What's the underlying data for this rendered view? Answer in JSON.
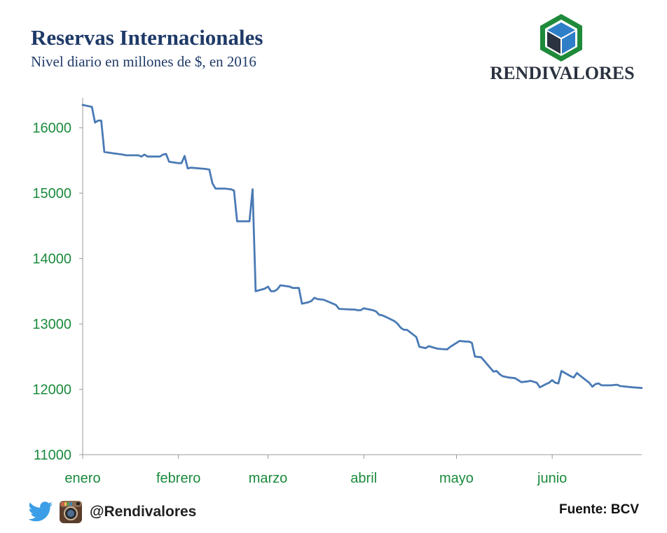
{
  "header": {
    "title": "Reservas Internacionales",
    "subtitle": "Nivel diario en millones de $, en 2016"
  },
  "brand": {
    "name": "RENDIVALORES"
  },
  "footer": {
    "handle": "@Rendivalores",
    "source": "Fuente: BCV",
    "icons": [
      "twitter-icon",
      "instagram-icon"
    ]
  },
  "colors": {
    "line": "#4a7ab5",
    "tick_label": "#1a8a3c",
    "title": "#1f3a68",
    "axis": "#999999",
    "logo_green": "#1e8a3a",
    "logo_blue": "#2f7fc8",
    "logo_dark": "#2b3240"
  },
  "chart_data": {
    "type": "line",
    "title": "Reservas Internacionales",
    "subtitle": "Nivel diario en millones de $, en 2016",
    "xlabel": "",
    "ylabel": "",
    "ylim": [
      11000,
      16000
    ],
    "xlim": [
      "2016-01-01",
      "2016-06-30"
    ],
    "yticks": [
      11000,
      12000,
      13000,
      14000,
      15000,
      16000
    ],
    "xticks": [
      {
        "date": "2016-01-01",
        "label": "enero"
      },
      {
        "date": "2016-02-01",
        "label": "febrero"
      },
      {
        "date": "2016-03-01",
        "label": "marzo"
      },
      {
        "date": "2016-04-01",
        "label": "abril"
      },
      {
        "date": "2016-05-01",
        "label": "mayo"
      },
      {
        "date": "2016-06-01",
        "label": "junio"
      }
    ],
    "grid": false,
    "legend": "none",
    "series": [
      {
        "points": [
          [
            "2016-01-01",
            16350
          ],
          [
            "2016-01-04",
            16320
          ],
          [
            "2016-01-05",
            16080
          ],
          [
            "2016-01-06",
            16110
          ],
          [
            "2016-01-07",
            16110
          ],
          [
            "2016-01-08",
            15630
          ],
          [
            "2016-01-11",
            15610
          ],
          [
            "2016-01-14",
            15590
          ],
          [
            "2016-01-15",
            15580
          ],
          [
            "2016-01-19",
            15580
          ],
          [
            "2016-01-20",
            15560
          ],
          [
            "2016-01-21",
            15590
          ],
          [
            "2016-01-22",
            15560
          ],
          [
            "2016-01-26",
            15560
          ],
          [
            "2016-01-27",
            15590
          ],
          [
            "2016-01-28",
            15600
          ],
          [
            "2016-01-29",
            15480
          ],
          [
            "2016-02-01",
            15460
          ],
          [
            "2016-02-02",
            15460
          ],
          [
            "2016-02-03",
            15570
          ],
          [
            "2016-02-04",
            15380
          ],
          [
            "2016-02-05",
            15390
          ],
          [
            "2016-02-10",
            15370
          ],
          [
            "2016-02-11",
            15360
          ],
          [
            "2016-02-12",
            15150
          ],
          [
            "2016-02-13",
            15070
          ],
          [
            "2016-02-16",
            15070
          ],
          [
            "2016-02-18",
            15060
          ],
          [
            "2016-02-19",
            15040
          ],
          [
            "2016-02-20",
            14570
          ],
          [
            "2016-02-22",
            14570
          ],
          [
            "2016-02-24",
            14570
          ],
          [
            "2016-02-25",
            15060
          ],
          [
            "2016-02-26",
            13500
          ],
          [
            "2016-02-29",
            13540
          ],
          [
            "2016-03-01",
            13570
          ],
          [
            "2016-03-02",
            13500
          ],
          [
            "2016-03-03",
            13500
          ],
          [
            "2016-03-04",
            13530
          ],
          [
            "2016-03-05",
            13590
          ],
          [
            "2016-03-08",
            13570
          ],
          [
            "2016-03-09",
            13550
          ],
          [
            "2016-03-11",
            13550
          ],
          [
            "2016-03-12",
            13310
          ],
          [
            "2016-03-14",
            13330
          ],
          [
            "2016-03-15",
            13350
          ],
          [
            "2016-03-16",
            13400
          ],
          [
            "2016-03-17",
            13380
          ],
          [
            "2016-03-19",
            13370
          ],
          [
            "2016-03-22",
            13310
          ],
          [
            "2016-03-23",
            13290
          ],
          [
            "2016-03-24",
            13230
          ],
          [
            "2016-03-28",
            13220
          ],
          [
            "2016-03-29",
            13220
          ],
          [
            "2016-03-30",
            13210
          ],
          [
            "2016-03-31",
            13210
          ],
          [
            "2016-04-01",
            13240
          ],
          [
            "2016-04-04",
            13210
          ],
          [
            "2016-04-05",
            13190
          ],
          [
            "2016-04-06",
            13140
          ],
          [
            "2016-04-07",
            13130
          ],
          [
            "2016-04-08",
            13110
          ],
          [
            "2016-04-11",
            13040
          ],
          [
            "2016-04-12",
            13000
          ],
          [
            "2016-04-13",
            12940
          ],
          [
            "2016-04-14",
            12910
          ],
          [
            "2016-04-15",
            12910
          ],
          [
            "2016-04-18",
            12800
          ],
          [
            "2016-04-19",
            12650
          ],
          [
            "2016-04-20",
            12640
          ],
          [
            "2016-04-21",
            12630
          ],
          [
            "2016-04-22",
            12660
          ],
          [
            "2016-04-25",
            12620
          ],
          [
            "2016-04-28",
            12610
          ],
          [
            "2016-04-29",
            12650
          ],
          [
            "2016-05-02",
            12740
          ],
          [
            "2016-05-04",
            12730
          ],
          [
            "2016-05-05",
            12730
          ],
          [
            "2016-05-06",
            12710
          ],
          [
            "2016-05-07",
            12500
          ],
          [
            "2016-05-09",
            12490
          ],
          [
            "2016-05-13",
            12270
          ],
          [
            "2016-05-14",
            12280
          ],
          [
            "2016-05-15",
            12230
          ],
          [
            "2016-05-16",
            12200
          ],
          [
            "2016-05-18",
            12180
          ],
          [
            "2016-05-20",
            12170
          ],
          [
            "2016-05-22",
            12110
          ],
          [
            "2016-05-24",
            12120
          ],
          [
            "2016-05-25",
            12130
          ],
          [
            "2016-05-27",
            12100
          ],
          [
            "2016-05-28",
            12030
          ],
          [
            "2016-05-30",
            12080
          ],
          [
            "2016-05-31",
            12100
          ],
          [
            "2016-06-01",
            12140
          ],
          [
            "2016-06-02",
            12100
          ],
          [
            "2016-06-03",
            12090
          ],
          [
            "2016-06-04",
            12280
          ],
          [
            "2016-06-07",
            12200
          ],
          [
            "2016-06-08",
            12180
          ],
          [
            "2016-06-09",
            12250
          ],
          [
            "2016-06-10",
            12210
          ],
          [
            "2016-06-13",
            12100
          ],
          [
            "2016-06-14",
            12040
          ],
          [
            "2016-06-15",
            12080
          ],
          [
            "2016-06-16",
            12090
          ],
          [
            "2016-06-17",
            12060
          ],
          [
            "2016-06-20",
            12060
          ],
          [
            "2016-06-22",
            12070
          ],
          [
            "2016-06-23",
            12050
          ],
          [
            "2016-06-27",
            12030
          ],
          [
            "2016-06-30",
            12020
          ]
        ]
      }
    ]
  }
}
